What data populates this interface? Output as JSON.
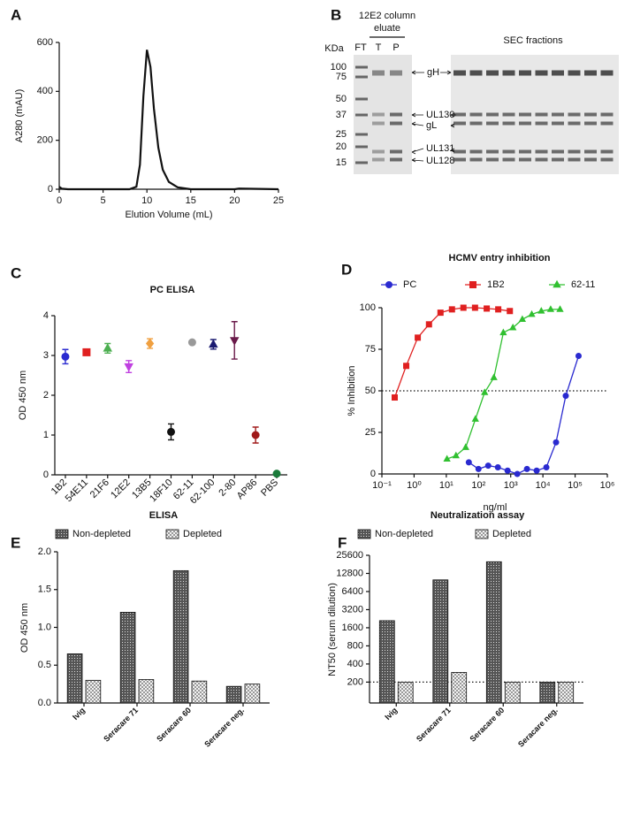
{
  "chart_data": [
    {
      "type": "line",
      "panel": "A",
      "xlabel": "Elution Volume (mL)",
      "ylabel": "A280 (mAU)",
      "color": "#111111",
      "x": [
        0,
        0.3,
        1,
        5,
        8,
        8.8,
        9.2,
        9.6,
        10,
        10.4,
        10.8,
        11.3,
        11.8,
        12.5,
        13.5,
        15,
        20,
        20.5,
        25
      ],
      "values": [
        10,
        2,
        0,
        0,
        0,
        10,
        100,
        380,
        570,
        500,
        330,
        170,
        80,
        30,
        8,
        0,
        0,
        3,
        0
      ],
      "xlim": [
        0,
        25
      ],
      "xticks": [
        0,
        5,
        10,
        15,
        20,
        25
      ],
      "ylim": [
        0,
        600
      ],
      "yticks": [
        0,
        200,
        400,
        600
      ]
    },
    {
      "type": "scatter",
      "panel": "C",
      "title": "PC ELISA",
      "ylabel": "OD 450 nm",
      "categories": [
        "1B2",
        "54E11",
        "21F6",
        "12E2",
        "13B5",
        "18F10",
        "62-11",
        "62-100",
        "2-80",
        "AP86",
        "PBS"
      ],
      "values": [
        2.97,
        3.08,
        3.18,
        2.72,
        3.3,
        1.08,
        3.33,
        3.28,
        3.38,
        1.0,
        0.03
      ],
      "errors": [
        0.18,
        0.03,
        0.12,
        0.15,
        0.12,
        0.2,
        0.03,
        0.12,
        0.47,
        0.2,
        0.02
      ],
      "colors": [
        "#2a2ad0",
        "#e02020",
        "#4caf50",
        "#c040e0",
        "#f0a040",
        "#111111",
        "#999999",
        "#1a1a70",
        "#6a1a4a",
        "#a01a1a",
        "#1a7a3a"
      ],
      "markers": [
        "circle",
        "square",
        "triangle",
        "triangle-down",
        "diamond",
        "circle",
        "circle",
        "triangle",
        "triangle-down",
        "circle",
        "circle"
      ],
      "ylim": [
        0,
        4
      ],
      "yticks": [
        0,
        1,
        2,
        3,
        4
      ]
    },
    {
      "type": "line",
      "panel": "D",
      "title": "HCMV entry inhibition",
      "xlabel": "ng/ml",
      "ylabel": "% Inhibition",
      "xscale": "log",
      "series": [
        {
          "name": "PC",
          "color": "#2a2ad0",
          "marker": "circle",
          "x": [
            50,
            100,
            200,
            400,
            800,
            1600,
            3200,
            6400,
            12800,
            25600,
            51200,
            128000
          ],
          "values": [
            7,
            3,
            5,
            4,
            2,
            0,
            3,
            2,
            4,
            19,
            47,
            71
          ]
        },
        {
          "name": "1B2",
          "color": "#e02020",
          "marker": "square",
          "x": [
            0.25,
            0.57,
            1.3,
            2.9,
            6.6,
            15,
            34,
            78,
            180,
            410,
            940
          ],
          "values": [
            46,
            65,
            82,
            90,
            97,
            99,
            100,
            100,
            99.5,
            99,
            98
          ]
        },
        {
          "name": "62-11",
          "color": "#30c030",
          "marker": "triangle",
          "x": [
            10.5,
            20,
            40,
            80,
            155,
            300,
            590,
            1170,
            2300,
            4500,
            8900,
            17400,
            34000
          ],
          "values": [
            9,
            11,
            16,
            33,
            49,
            58,
            85,
            88,
            93,
            96,
            98,
            99,
            99
          ]
        }
      ],
      "reference_line": 50,
      "xlim": [
        0.1,
        1000000
      ],
      "xticks": [
        {
          "value": 0.1,
          "label": "10⁻¹"
        },
        {
          "value": 1,
          "label": "10⁰"
        },
        {
          "value": 10,
          "label": "10¹"
        },
        {
          "value": 100,
          "label": "10²"
        },
        {
          "value": 1000,
          "label": "10³"
        },
        {
          "value": 10000,
          "label": "10⁴"
        },
        {
          "value": 100000,
          "label": "10⁵"
        },
        {
          "value": 1000000,
          "label": "10⁶"
        }
      ],
      "ylim": [
        0,
        100
      ],
      "yticks": [
        0,
        25,
        50,
        75,
        100
      ]
    },
    {
      "type": "bar",
      "panel": "E",
      "title": "ELISA",
      "ylabel": "OD 450 nm",
      "categories": [
        "Ivig",
        "Seracare 71",
        "Seracare 60",
        "Seracare neg."
      ],
      "series": [
        {
          "name": "Non-depleted",
          "pattern": "dots",
          "values": [
            0.65,
            1.2,
            1.75,
            0.22
          ]
        },
        {
          "name": "Depleted",
          "pattern": "checks",
          "values": [
            0.3,
            0.31,
            0.29,
            0.25
          ]
        }
      ],
      "ylim": [
        0,
        2
      ],
      "yticks": [
        {
          "value": 0,
          "label": "0.0"
        },
        0.5,
        {
          "value": 1,
          "label": "1.0"
        },
        1.5,
        {
          "value": 2,
          "label": "2.0"
        }
      ]
    },
    {
      "type": "bar",
      "panel": "F",
      "title": "Neutralization assay",
      "ylabel": "NT50 (serum dilution)",
      "yscale": "log",
      "categories": [
        "Ivig",
        "Seracare 71",
        "Seracare 60",
        "Seracare neg."
      ],
      "series": [
        {
          "name": "Non-depleted",
          "pattern": "dots",
          "values": [
            2100,
            10000,
            20000,
            200
          ]
        },
        {
          "name": "Depleted",
          "pattern": "checks",
          "values": [
            200,
            290,
            200,
            200
          ]
        }
      ],
      "reference_line": 200,
      "ylim": [
        90,
        25600
      ],
      "yticks": [
        200,
        400,
        800,
        1600,
        3200,
        6400,
        12800,
        25600
      ]
    }
  ],
  "gel": {
    "panel": "B",
    "kda": "KDa",
    "eluate_title": [
      "12E2 column",
      "eluate"
    ],
    "lanes": [
      "FT",
      "T",
      "P"
    ],
    "sec_title": "SEC fractions",
    "markers": [
      100,
      75,
      50,
      37,
      25,
      20,
      15
    ],
    "bands": [
      "gH",
      "UL130",
      "gL",
      "UL131",
      "UL128"
    ]
  }
}
